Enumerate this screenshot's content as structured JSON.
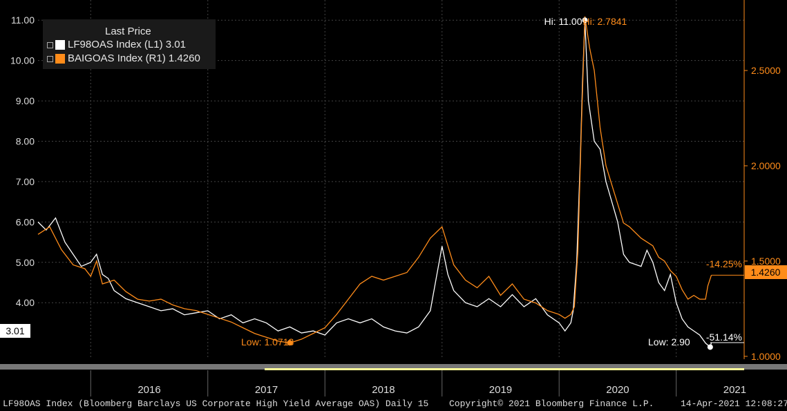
{
  "legend": {
    "title": "Last Price",
    "rows": [
      {
        "name": "LF98OAS Index",
        "axis": "(L1)",
        "value": "3.01",
        "color": "#ffffff"
      },
      {
        "name": "BAIGOAS Index",
        "axis": "(R1)",
        "value": "1.4260",
        "color": "#ff8c1a"
      }
    ]
  },
  "annotations": {
    "hi_left": "Hi: 11.00",
    "hi_right": "Hi: 2.7841",
    "low_right": "Low: 1.0713",
    "low_left": "Low: 2.90",
    "pct_left": "-51.14%",
    "pct_right": "-14.25%",
    "last_left": "3.01",
    "last_right": "1.4260"
  },
  "footer": {
    "source": "LF98OAS Index (Bloomberg Barclays US Corporate High Yield Average OAS)  Daily 15",
    "copyright": "Copyright© 2021 Bloomberg Finance L.P.",
    "timestamp": "14-Apr-2021 12:08:27"
  },
  "colors": {
    "background": "#000000",
    "white_series": "#ffffff",
    "orange_series": "#ff8c1a",
    "grid": "#555555"
  },
  "chart_data": {
    "type": "line",
    "x_ticks": [
      "2016",
      "2017",
      "2018",
      "2019",
      "2020",
      "2021"
    ],
    "y_left": {
      "ticks": [
        "4.00",
        "5.00",
        "6.00",
        "7.00",
        "8.00",
        "9.00",
        "10.00",
        "11.00"
      ],
      "range": [
        2.6,
        11.5
      ]
    },
    "y_right": {
      "ticks": [
        "1.0000",
        "1.5000",
        "2.0000",
        "2.5000"
      ],
      "range": [
        0.985,
        2.87
      ]
    },
    "x_range": [
      2015.55,
      2021.58
    ],
    "series": [
      {
        "name": "LF98OAS Index",
        "axis": "left",
        "color": "#ffffff",
        "points": [
          [
            2015.55,
            6.0
          ],
          [
            2015.62,
            5.8
          ],
          [
            2015.7,
            6.1
          ],
          [
            2015.78,
            5.5
          ],
          [
            2015.85,
            5.2
          ],
          [
            2015.92,
            4.9
          ],
          [
            2016.0,
            5.0
          ],
          [
            2016.05,
            5.2
          ],
          [
            2016.1,
            4.7
          ],
          [
            2016.15,
            4.6
          ],
          [
            2016.2,
            4.3
          ],
          [
            2016.3,
            4.1
          ],
          [
            2016.4,
            4.0
          ],
          [
            2016.5,
            3.9
          ],
          [
            2016.6,
            3.8
          ],
          [
            2016.7,
            3.85
          ],
          [
            2016.8,
            3.7
          ],
          [
            2016.9,
            3.75
          ],
          [
            2017.0,
            3.8
          ],
          [
            2017.1,
            3.6
          ],
          [
            2017.2,
            3.7
          ],
          [
            2017.3,
            3.5
          ],
          [
            2017.4,
            3.6
          ],
          [
            2017.5,
            3.5
          ],
          [
            2017.6,
            3.3
          ],
          [
            2017.7,
            3.4
          ],
          [
            2017.8,
            3.25
          ],
          [
            2017.9,
            3.3
          ],
          [
            2018.0,
            3.2
          ],
          [
            2018.1,
            3.5
          ],
          [
            2018.2,
            3.6
          ],
          [
            2018.3,
            3.5
          ],
          [
            2018.4,
            3.6
          ],
          [
            2018.5,
            3.4
          ],
          [
            2018.6,
            3.3
          ],
          [
            2018.7,
            3.25
          ],
          [
            2018.8,
            3.4
          ],
          [
            2018.9,
            3.8
          ],
          [
            2018.95,
            4.6
          ],
          [
            2019.0,
            5.4
          ],
          [
            2019.05,
            4.7
          ],
          [
            2019.1,
            4.3
          ],
          [
            2019.2,
            4.0
          ],
          [
            2019.3,
            3.9
          ],
          [
            2019.4,
            4.1
          ],
          [
            2019.5,
            3.9
          ],
          [
            2019.6,
            4.2
          ],
          [
            2019.7,
            3.9
          ],
          [
            2019.8,
            4.1
          ],
          [
            2019.9,
            3.7
          ],
          [
            2020.0,
            3.5
          ],
          [
            2020.05,
            3.3
          ],
          [
            2020.1,
            3.5
          ],
          [
            2020.12,
            3.8
          ],
          [
            2020.15,
            5.0
          ],
          [
            2020.18,
            7.5
          ],
          [
            2020.2,
            9.5
          ],
          [
            2020.22,
            11.0
          ],
          [
            2020.25,
            9.0
          ],
          [
            2020.3,
            8.0
          ],
          [
            2020.35,
            7.8
          ],
          [
            2020.4,
            7.0
          ],
          [
            2020.45,
            6.5
          ],
          [
            2020.5,
            6.0
          ],
          [
            2020.55,
            5.2
          ],
          [
            2020.6,
            5.0
          ],
          [
            2020.7,
            4.9
          ],
          [
            2020.75,
            5.3
          ],
          [
            2020.8,
            5.0
          ],
          [
            2020.85,
            4.5
          ],
          [
            2020.9,
            4.3
          ],
          [
            2020.95,
            4.7
          ],
          [
            2021.0,
            4.0
          ],
          [
            2021.05,
            3.6
          ],
          [
            2021.1,
            3.4
          ],
          [
            2021.15,
            3.3
          ],
          [
            2021.2,
            3.2
          ],
          [
            2021.25,
            3.0
          ],
          [
            2021.29,
            2.9
          ],
          [
            2021.3,
            3.01
          ]
        ]
      },
      {
        "name": "BAIGOAS Index",
        "axis": "right",
        "color": "#ff8c1a",
        "points": [
          [
            2015.55,
            1.64
          ],
          [
            2015.65,
            1.68
          ],
          [
            2015.75,
            1.56
          ],
          [
            2015.85,
            1.48
          ],
          [
            2015.95,
            1.46
          ],
          [
            2016.0,
            1.42
          ],
          [
            2016.05,
            1.5
          ],
          [
            2016.1,
            1.38
          ],
          [
            2016.2,
            1.4
          ],
          [
            2016.3,
            1.34
          ],
          [
            2016.4,
            1.3
          ],
          [
            2016.5,
            1.29
          ],
          [
            2016.6,
            1.3
          ],
          [
            2016.7,
            1.27
          ],
          [
            2016.8,
            1.25
          ],
          [
            2016.9,
            1.24
          ],
          [
            2017.0,
            1.22
          ],
          [
            2017.1,
            1.2
          ],
          [
            2017.2,
            1.18
          ],
          [
            2017.3,
            1.15
          ],
          [
            2017.4,
            1.12
          ],
          [
            2017.5,
            1.1
          ],
          [
            2017.6,
            1.08
          ],
          [
            2017.7,
            1.07
          ],
          [
            2017.8,
            1.09
          ],
          [
            2017.9,
            1.12
          ],
          [
            2018.0,
            1.15
          ],
          [
            2018.1,
            1.22
          ],
          [
            2018.2,
            1.3
          ],
          [
            2018.3,
            1.38
          ],
          [
            2018.4,
            1.42
          ],
          [
            2018.5,
            1.4
          ],
          [
            2018.6,
            1.42
          ],
          [
            2018.7,
            1.44
          ],
          [
            2018.8,
            1.52
          ],
          [
            2018.9,
            1.62
          ],
          [
            2019.0,
            1.68
          ],
          [
            2019.05,
            1.58
          ],
          [
            2019.1,
            1.48
          ],
          [
            2019.2,
            1.4
          ],
          [
            2019.3,
            1.36
          ],
          [
            2019.4,
            1.42
          ],
          [
            2019.5,
            1.32
          ],
          [
            2019.6,
            1.38
          ],
          [
            2019.7,
            1.3
          ],
          [
            2019.8,
            1.28
          ],
          [
            2019.9,
            1.24
          ],
          [
            2020.0,
            1.22
          ],
          [
            2020.05,
            1.2
          ],
          [
            2020.1,
            1.22
          ],
          [
            2020.13,
            1.26
          ],
          [
            2020.16,
            1.55
          ],
          [
            2020.19,
            2.2
          ],
          [
            2020.22,
            2.7841
          ],
          [
            2020.26,
            2.62
          ],
          [
            2020.3,
            2.5
          ],
          [
            2020.35,
            2.2
          ],
          [
            2020.4,
            2.0
          ],
          [
            2020.45,
            1.9
          ],
          [
            2020.5,
            1.8
          ],
          [
            2020.55,
            1.7
          ],
          [
            2020.6,
            1.68
          ],
          [
            2020.7,
            1.62
          ],
          [
            2020.8,
            1.58
          ],
          [
            2020.85,
            1.52
          ],
          [
            2020.9,
            1.5
          ],
          [
            2020.95,
            1.45
          ],
          [
            2021.0,
            1.42
          ],
          [
            2021.05,
            1.35
          ],
          [
            2021.1,
            1.3
          ],
          [
            2021.15,
            1.32
          ],
          [
            2021.2,
            1.3
          ],
          [
            2021.25,
            1.3
          ],
          [
            2021.27,
            1.37
          ],
          [
            2021.3,
            1.426
          ]
        ]
      }
    ],
    "hi_point": {
      "x": 2020.22
    },
    "low_points": {
      "left_x": 2021.29,
      "right_x": 2017.7
    }
  }
}
